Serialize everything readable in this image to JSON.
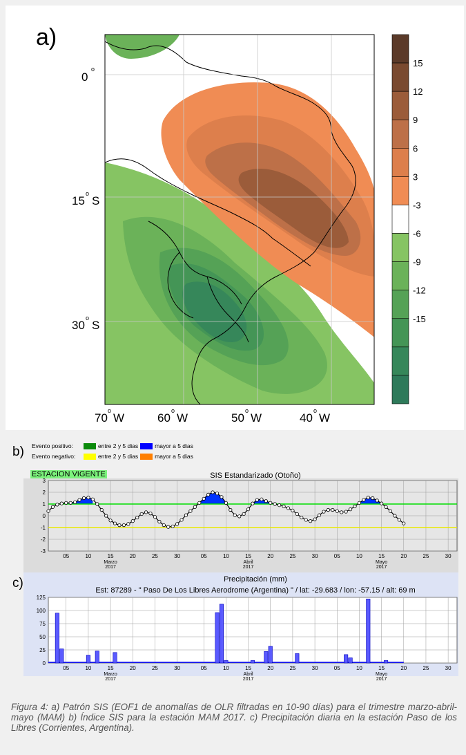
{
  "panel_labels": {
    "a": "a)",
    "b": "b)",
    "c": "c)"
  },
  "map": {
    "lat_labels": [
      "0",
      "15",
      "30"
    ],
    "lat_suffix": [
      "",
      "S",
      "S"
    ],
    "lon_labels": [
      "70",
      "60",
      "50",
      "40"
    ],
    "lon_suffix": "W",
    "colorbar_ticks": [
      "15",
      "12",
      "9",
      "6",
      "3",
      "-3",
      "-6",
      "-9",
      "-12",
      "-15"
    ],
    "colorbar_colors": [
      "#5b3a29",
      "#7a4a30",
      "#9b5c3a",
      "#bd7048",
      "#dd7f4c",
      "#f08c54",
      "#ffffff",
      "#86c463",
      "#6bb259",
      "#55a256",
      "#449556",
      "#36875a",
      "#2e7a5a"
    ]
  },
  "legend": {
    "positive_label": "Evento positivo:",
    "negative_label": "Evento negativo:",
    "between_label": "entre 2 y 5 dias",
    "more_label": "mayor a 5 dias",
    "pos_between_color": "#0a8a0a",
    "pos_more_color": "#0000ff",
    "neg_between_color": "#ffff00",
    "neg_more_color": "#ff7f00",
    "estacion": "ESTACION VIGENTE"
  },
  "chart_data": [
    {
      "type": "line",
      "title": "SIS Estandarizado (Otoño)",
      "ylim": [
        -3,
        3
      ],
      "yticks": [
        "3",
        "2",
        "1",
        "0",
        "-1",
        "-2",
        "-3"
      ],
      "xticks": [
        "05",
        "10",
        "15",
        "20",
        "25",
        "30",
        "05",
        "10",
        "15",
        "20",
        "25",
        "30",
        "05",
        "10",
        "15",
        "20",
        "25",
        "30"
      ],
      "month_labels": [
        {
          "m": "Marzo",
          "y": "2017"
        },
        {
          "m": "Abril",
          "y": "2017"
        },
        {
          "m": "Mayo",
          "y": "2017"
        }
      ],
      "thresholds": [
        1,
        -1
      ],
      "series": [
        {
          "values": [
            0.4,
            0.75,
            0.95,
            1.05,
            1.1,
            1.1,
            1.15,
            1.35,
            1.5,
            1.55,
            1.4,
            1.0,
            0.5,
            0.0,
            -0.4,
            -0.65,
            -0.8,
            -0.8,
            -0.7,
            -0.45,
            -0.15,
            0.15,
            0.3,
            0.2,
            -0.1,
            -0.5,
            -0.8,
            -0.95,
            -0.9,
            -0.7,
            -0.35,
            0.05,
            0.4,
            0.75,
            1.1,
            1.45,
            1.8,
            2.0,
            1.9,
            1.6,
            1.1,
            0.5,
            0.05,
            -0.05,
            0.15,
            0.55,
            1.05,
            1.35,
            1.4,
            1.25,
            1.1,
            1.0,
            0.9,
            0.8,
            0.65,
            0.45,
            0.15,
            -0.15,
            -0.35,
            -0.45,
            -0.3,
            0.05,
            0.35,
            0.5,
            0.5,
            0.4,
            0.3,
            0.35,
            0.55,
            0.8,
            1.1,
            1.35,
            1.55,
            1.5,
            1.3,
            1.05,
            0.75,
            0.4,
            0.0,
            -0.35,
            -0.65
          ]
        }
      ]
    },
    {
      "type": "bar",
      "title": "Precipitación (mm)",
      "subtitle": "Est: 87289 - \" Paso De Los Libres Aerodrome (Argentina) \" / lat: -29.683 / lon: -57.15 / alt: 69 m",
      "ylim": [
        0,
        125
      ],
      "yticks": [
        "125",
        "100",
        "75",
        "50",
        "25",
        "0"
      ],
      "xticks": [
        "05",
        "10",
        "15",
        "20",
        "25",
        "30",
        "05",
        "10",
        "15",
        "20",
        "25",
        "30",
        "05",
        "10",
        "15",
        "20",
        "25",
        "30"
      ],
      "month_labels": [
        {
          "m": "Marzo",
          "y": "2017"
        },
        {
          "m": "Abril",
          "y": "2017"
        },
        {
          "m": "Mayo",
          "y": "2017"
        }
      ],
      "bars": [
        {
          "day": 2,
          "value": 95
        },
        {
          "day": 3,
          "value": 27
        },
        {
          "day": 9,
          "value": 15
        },
        {
          "day": 11,
          "value": 23
        },
        {
          "day": 15,
          "value": 20
        },
        {
          "day": 38,
          "value": 96
        },
        {
          "day": 39,
          "value": 112
        },
        {
          "day": 40,
          "value": 5
        },
        {
          "day": 46,
          "value": 5
        },
        {
          "day": 49,
          "value": 22
        },
        {
          "day": 50,
          "value": 32
        },
        {
          "day": 56,
          "value": 18
        },
        {
          "day": 67,
          "value": 16
        },
        {
          "day": 68,
          "value": 10
        },
        {
          "day": 72,
          "value": 122
        },
        {
          "day": 76,
          "value": 5
        }
      ]
    }
  ],
  "caption": "Figura 4: a) Patrón SIS (EOF1 de anomalías de OLR filtradas en 10-90 días) para el trimestre marzo-abril-mayo (MAM) b) Índice SIS para la estación MAM 2017. c) Precipitación diaria en la estación Paso de los Libres (Corrientes, Argentina)."
}
